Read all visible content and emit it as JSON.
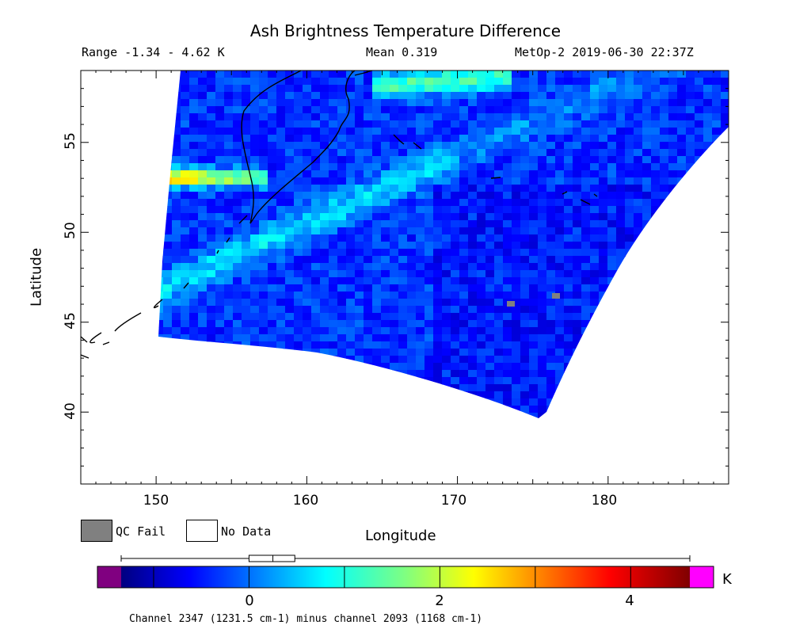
{
  "title": "Ash Brightness Temperature Difference",
  "stats": {
    "range": "Range -1.34 - 4.62 K",
    "mean": "Mean 0.319",
    "satellite_time": "MetOp-2 2019-06-30 22:37Z"
  },
  "axes": {
    "x_label": "Longitude",
    "y_label": "Latitude",
    "x_ticks": [
      "150",
      "160",
      "170",
      "180"
    ],
    "y_ticks": [
      "55",
      "50",
      "45",
      "40"
    ],
    "lon_range": [
      145,
      188
    ],
    "lat_range": [
      36,
      59
    ]
  },
  "legend": {
    "qc_fail": "QC Fail",
    "no_data": "No Data",
    "qc_fail_color": "#808080",
    "no_data_color": "#ffffff"
  },
  "colorbar": {
    "ticks": [
      "0",
      "2",
      "4"
    ],
    "units": "K",
    "min": -1.34,
    "max": 4.62,
    "under_color": "#800080",
    "over_color": "#ff00ff",
    "boxplot": {
      "min": -1.34,
      "q1": 0.0,
      "median": 0.25,
      "q3": 0.48,
      "max": 4.62
    }
  },
  "footnote": "Channel 2347 (1231.5 cm-1) minus channel 2093 (1168 cm-1)"
}
